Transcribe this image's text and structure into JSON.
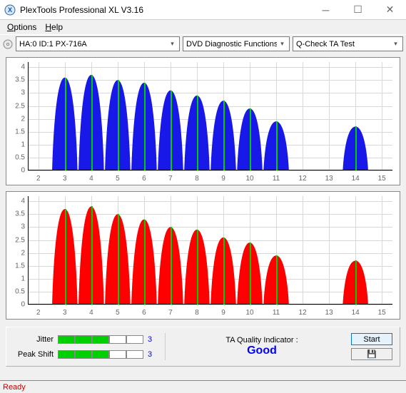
{
  "window": {
    "title": "PlexTools Professional XL V3.16",
    "min_glyph": "─",
    "max_glyph": "☐",
    "close_glyph": "✕"
  },
  "menu": {
    "options": "Options",
    "help": "Help"
  },
  "toolbar": {
    "drive": "HA:0 ID:1   PX-716A",
    "mode": "DVD Diagnostic Functions",
    "test": "Q-Check TA Test"
  },
  "chart": {
    "yticks": [
      "0",
      "0.5",
      "1",
      "1.5",
      "2",
      "2.5",
      "3",
      "3.5",
      "4"
    ],
    "xticks": [
      "2",
      "3",
      "4",
      "5",
      "6",
      "7",
      "8",
      "9",
      "10",
      "11",
      "12",
      "13",
      "14",
      "15"
    ],
    "xlim": [
      1.6,
      15.4
    ],
    "ylim": [
      0,
      4.2
    ],
    "grid_color_v": "#d8d8d8",
    "marker_color": "#00d000",
    "bg": "#ffffff",
    "top": {
      "fill": "#1818e8",
      "peaks": [
        {
          "x": 3,
          "h": 3.6
        },
        {
          "x": 4,
          "h": 3.7
        },
        {
          "x": 5,
          "h": 3.5
        },
        {
          "x": 6,
          "h": 3.4
        },
        {
          "x": 7,
          "h": 3.1
        },
        {
          "x": 8,
          "h": 2.9
        },
        {
          "x": 9,
          "h": 2.7
        },
        {
          "x": 10,
          "h": 2.4
        },
        {
          "x": 11,
          "h": 1.9
        },
        {
          "x": 14,
          "h": 1.7
        }
      ]
    },
    "bottom": {
      "fill": "#ff0000",
      "peaks": [
        {
          "x": 3,
          "h": 3.7
        },
        {
          "x": 4,
          "h": 3.8
        },
        {
          "x": 5,
          "h": 3.5
        },
        {
          "x": 6,
          "h": 3.3
        },
        {
          "x": 7,
          "h": 3.0
        },
        {
          "x": 8,
          "h": 2.9
        },
        {
          "x": 9,
          "h": 2.6
        },
        {
          "x": 10,
          "h": 2.4
        },
        {
          "x": 11,
          "h": 1.9
        },
        {
          "x": 14,
          "h": 1.7
        }
      ]
    }
  },
  "meters": {
    "jitter": {
      "label": "Jitter",
      "segments": 5,
      "filled": 3,
      "value": "3"
    },
    "peakshift": {
      "label": "Peak Shift",
      "segments": 5,
      "filled": 3,
      "value": "3"
    },
    "seg_on_color": "#00d000"
  },
  "ta": {
    "label": "TA Quality Indicator :",
    "value": "Good"
  },
  "buttons": {
    "start": "Start",
    "disk_icon": "💾"
  },
  "statusbar": {
    "ready": "Ready"
  }
}
